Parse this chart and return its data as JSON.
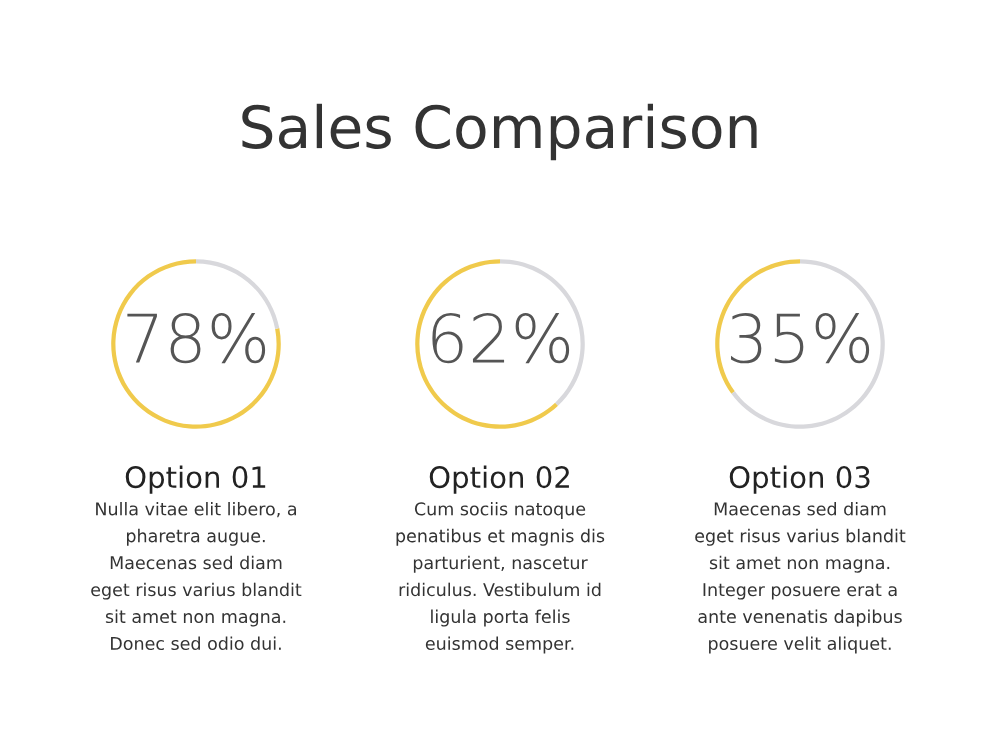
{
  "chart_data": [
    {
      "type": "other",
      "title": "Sales Comparison"
    },
    {
      "type": "donut",
      "title": "Option 01",
      "categories": [
        null,
        null
      ],
      "values": [
        78,
        22
      ],
      "colors": [
        "#f0ca4c",
        "#d8d8dc"
      ],
      "value_labels": [
        "78%",
        null
      ],
      "annotations": [
        "Nulla vitae elit libero, a\npharetra augue.\nMaecenas sed diam\neget risus varius blandit\nsit amet non magna.\nDonec sed odio dui."
      ]
    },
    {
      "type": "donut",
      "title": "Option 02",
      "categories": [
        null,
        null
      ],
      "values": [
        62,
        38
      ],
      "colors": [
        "#f0ca4c",
        "#d8d8dc"
      ],
      "value_labels": [
        "62%",
        null
      ],
      "annotations": [
        "Cum sociis natoque\npenatibus et magnis dis\nparturient, nascetur\nridiculus. Vestibulum id\nligula porta felis\neuismod semper."
      ]
    },
    {
      "type": "donut",
      "title": "Option 03",
      "categories": [
        null,
        null
      ],
      "values": [
        35,
        65
      ],
      "colors": [
        "#f0ca4c",
        "#d8d8dc"
      ],
      "value_labels": [
        "35%",
        null
      ],
      "annotations": [
        "Maecenas sed diam\neget risus varius blandit\nsit amet non magna.\nInteger posuere erat a\nante venenatis dapibus\nposuere velit aliquet."
      ]
    }
  ]
}
